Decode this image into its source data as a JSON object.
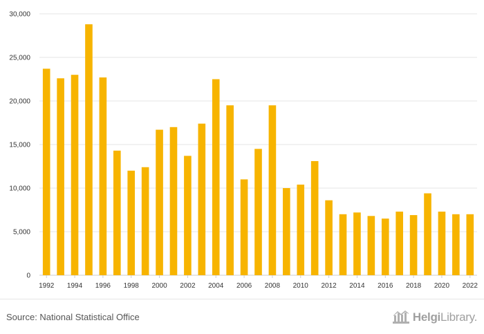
{
  "chart_data": {
    "type": "bar",
    "title": "",
    "xlabel": "",
    "ylabel": "",
    "categories": [
      "1992",
      "1993",
      "1994",
      "1995",
      "1996",
      "1997",
      "1998",
      "1999",
      "2000",
      "2001",
      "2002",
      "2003",
      "2004",
      "2005",
      "2006",
      "2007",
      "2008",
      "2009",
      "2010",
      "2011",
      "2012",
      "2013",
      "2014",
      "2015",
      "2016",
      "2017",
      "2018",
      "2019",
      "2020",
      "2021",
      "2022"
    ],
    "x_tick_labels": [
      "1992",
      "1994",
      "1996",
      "1998",
      "2000",
      "2002",
      "2004",
      "2006",
      "2008",
      "2010",
      "2012",
      "2014",
      "2016",
      "2018",
      "2020",
      "2022"
    ],
    "values": [
      23700,
      22600,
      23000,
      28800,
      22700,
      14300,
      12000,
      12400,
      16700,
      17000,
      13700,
      17400,
      22500,
      19500,
      11000,
      14500,
      19500,
      10000,
      10400,
      13100,
      8600,
      7000,
      7200,
      6800,
      6500,
      7300,
      6900,
      9400,
      7300,
      7000,
      7000
    ],
    "ylim": [
      0,
      30000
    ],
    "y_ticks": [
      0,
      5000,
      10000,
      15000,
      20000,
      25000,
      30000
    ],
    "y_tick_labels": [
      "0",
      "5,000",
      "10,000",
      "15,000",
      "20,000",
      "25,000",
      "30,000"
    ],
    "bar_color": "#f7b400",
    "grid": true,
    "legend": "none"
  },
  "footer": {
    "source": "Source: National Statistical Office",
    "logo_bold": "Helgi",
    "logo_light": "Library."
  }
}
